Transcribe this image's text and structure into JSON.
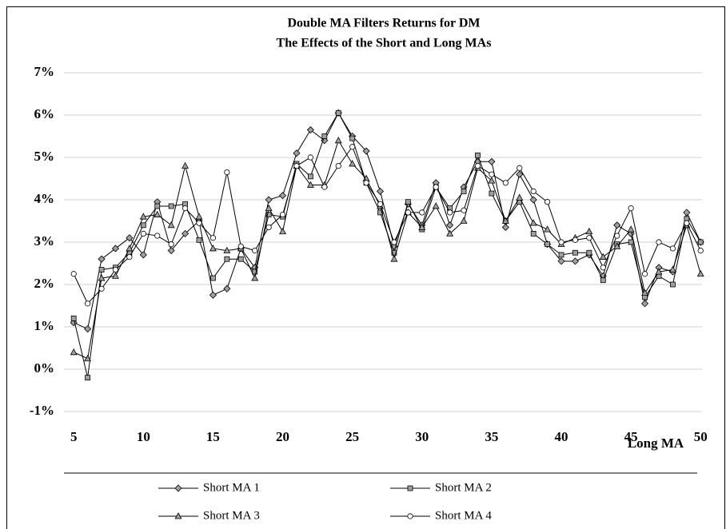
{
  "chart_data": {
    "type": "line",
    "title": "Double MA Filters Returns for DM",
    "subtitle": "The Effects of the Short and Long MAs",
    "x_label": "Long MA",
    "x": [
      5,
      6,
      7,
      8,
      9,
      10,
      11,
      12,
      13,
      14,
      15,
      16,
      17,
      18,
      19,
      20,
      21,
      22,
      23,
      24,
      25,
      26,
      27,
      28,
      29,
      30,
      31,
      32,
      33,
      34,
      35,
      36,
      37,
      38,
      39,
      40,
      41,
      42,
      43,
      44,
      45,
      46,
      47,
      48,
      49,
      50
    ],
    "series": [
      {
        "name": "Short MA 1",
        "color": "#000000",
        "marker": "diamond",
        "marker_fill": "#a0a0a0",
        "values": [
          1.1,
          0.95,
          2.6,
          2.85,
          3.1,
          2.7,
          3.95,
          2.8,
          3.2,
          3.5,
          1.75,
          1.9,
          2.85,
          2.4,
          4.0,
          4.1,
          5.1,
          5.65,
          5.4,
          6.05,
          5.5,
          5.15,
          4.2,
          2.9,
          3.9,
          3.4,
          4.4,
          3.4,
          4.3,
          4.9,
          4.9,
          3.35,
          4.6,
          4.0,
          2.95,
          2.55,
          2.55,
          2.7,
          2.2,
          3.4,
          3.2,
          1.55,
          2.4,
          2.3,
          3.7,
          3.0
        ]
      },
      {
        "name": "Short MA 2",
        "color": "#000000",
        "marker": "square",
        "marker_fill": "#a0a0a0",
        "values": [
          1.2,
          -0.2,
          2.35,
          2.4,
          2.75,
          3.4,
          3.85,
          3.85,
          3.9,
          3.05,
          2.15,
          2.6,
          2.6,
          2.3,
          3.65,
          3.6,
          4.85,
          4.55,
          5.5,
          6.05,
          5.45,
          4.4,
          3.7,
          2.75,
          3.95,
          3.3,
          4.3,
          3.8,
          4.2,
          5.05,
          4.15,
          3.5,
          3.95,
          3.2,
          2.95,
          2.7,
          2.75,
          2.75,
          2.1,
          2.95,
          3.0,
          1.7,
          2.2,
          2.0,
          3.55,
          3.0
        ]
      },
      {
        "name": "Short MA 3",
        "color": "#000000",
        "marker": "triangle",
        "marker_fill": "#a0a0a0",
        "values": [
          0.4,
          0.25,
          2.15,
          2.2,
          2.85,
          3.6,
          3.65,
          3.4,
          4.8,
          3.6,
          2.85,
          2.8,
          2.85,
          2.15,
          3.8,
          3.25,
          4.8,
          4.35,
          4.35,
          5.4,
          4.85,
          4.5,
          3.85,
          2.6,
          3.7,
          3.35,
          3.85,
          3.2,
          3.5,
          4.75,
          4.45,
          3.5,
          4.05,
          3.45,
          3.3,
          2.95,
          3.1,
          3.25,
          2.65,
          2.9,
          3.3,
          1.8,
          2.3,
          2.35,
          3.4,
          2.25
        ]
      },
      {
        "name": "Short MA 4",
        "color": "#000000",
        "marker": "circle",
        "marker_fill": "#ffffff",
        "values": [
          2.25,
          1.55,
          1.9,
          2.35,
          2.65,
          3.2,
          3.15,
          2.95,
          3.8,
          3.45,
          3.1,
          4.65,
          2.9,
          2.8,
          3.35,
          3.65,
          4.8,
          5.0,
          4.3,
          4.8,
          5.25,
          4.4,
          3.9,
          3.0,
          3.7,
          3.7,
          4.3,
          3.7,
          3.75,
          4.8,
          4.6,
          4.4,
          4.75,
          4.2,
          3.95,
          3.0,
          3.05,
          3.1,
          2.4,
          3.15,
          3.8,
          2.25,
          3.0,
          2.85,
          3.45,
          2.8
        ]
      }
    ],
    "xlim": [
      4.3,
      50.1
    ],
    "xticks": [
      5,
      10,
      15,
      20,
      25,
      30,
      35,
      40,
      45,
      50
    ],
    "ylim": [
      -1,
      7
    ],
    "yticks": [
      {
        "value": -1,
        "label": "-1%"
      },
      {
        "value": 0,
        "label": "0%"
      },
      {
        "value": 1,
        "label": "1%"
      },
      {
        "value": 2,
        "label": "2%"
      },
      {
        "value": 3,
        "label": "3%"
      },
      {
        "value": 4,
        "label": "4%"
      },
      {
        "value": 5,
        "label": "5%"
      },
      {
        "value": 6,
        "label": "6%"
      },
      {
        "value": 7,
        "label": "7%"
      }
    ],
    "grid": true,
    "legend": "bottom"
  }
}
